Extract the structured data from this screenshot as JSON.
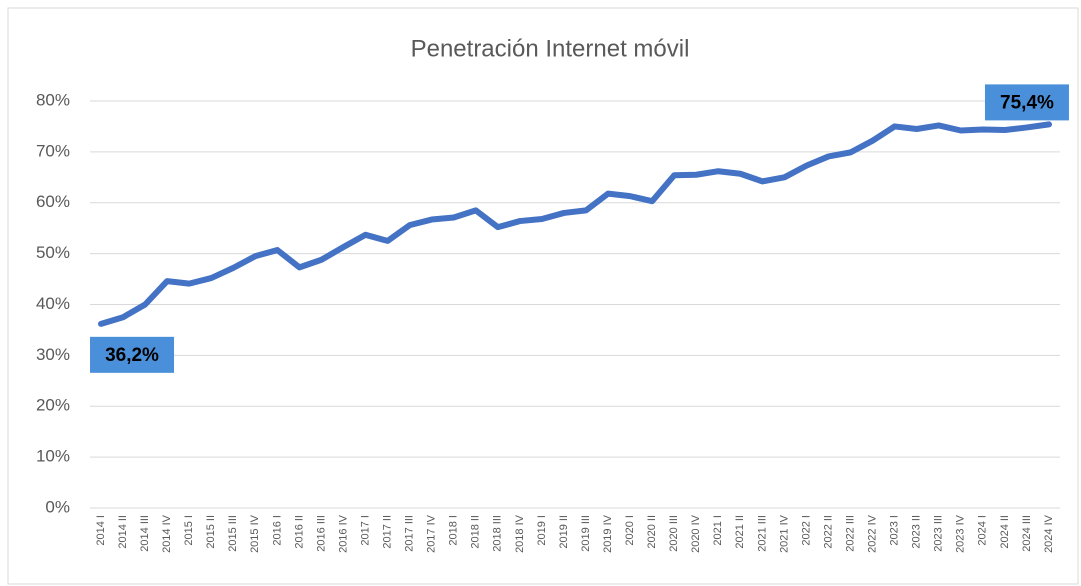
{
  "chart_data": {
    "type": "line",
    "title": "Penetración Internet móvil",
    "categories": [
      "2014 I",
      "2014 II",
      "2014 III",
      "2014 IV",
      "2015 I",
      "2015 II",
      "2015 III",
      "2015 IV",
      "2016 I",
      "2016 II",
      "2016 III",
      "2016 IV",
      "2017 I",
      "2017 II",
      "2017 III",
      "2017 IV",
      "2018 I",
      "2018 II",
      "2018 III",
      "2018 IV",
      "2019 I",
      "2019 II",
      "2019 III",
      "2019 IV",
      "2020 I",
      "2020 II",
      "2020 III",
      "2020 IV",
      "2021 I",
      "2021 II",
      "2021 III",
      "2021 IV",
      "2022 I",
      "2022 II",
      "2022 III",
      "2022 IV",
      "2023 I",
      "2023 II",
      "2023 III",
      "2023 IV",
      "2024 I",
      "2024 II",
      "2024 III",
      "2024 IV"
    ],
    "series": [
      {
        "name": "Penetración Internet móvil",
        "color": "#4472c4",
        "values": [
          36.2,
          37.5,
          40,
          44.6,
          44.1,
          45.2,
          47.2,
          49.5,
          50.7,
          47.3,
          48.8,
          51.3,
          53.7,
          52.5,
          55.6,
          56.7,
          57.1,
          58.5,
          55.2,
          56.4,
          56.8,
          58,
          58.5,
          61.8,
          61.3,
          60.3,
          65.4,
          65.5,
          66.2,
          65.7,
          64.2,
          65,
          67.3,
          69.1,
          69.9,
          72.2,
          75,
          74.5,
          75.2,
          74.2,
          74.4,
          74.3,
          74.8,
          75.4
        ],
        "value_labels": [
          "36,2%",
          null,
          null,
          null,
          null,
          null,
          null,
          null,
          null,
          null,
          null,
          null,
          null,
          null,
          null,
          null,
          null,
          null,
          null,
          null,
          null,
          null,
          null,
          null,
          null,
          null,
          null,
          null,
          null,
          null,
          null,
          null,
          null,
          null,
          null,
          null,
          null,
          null,
          null,
          null,
          null,
          null,
          null,
          "75,4%"
        ],
        "label_color": "#4a8fd9"
      }
    ],
    "ylim": [
      0,
      80
    ],
    "yticks": [
      {
        "value": 0,
        "label": "0%"
      },
      {
        "value": 10,
        "label": "10%"
      },
      {
        "value": 20,
        "label": "20%"
      },
      {
        "value": 30,
        "label": "30%"
      },
      {
        "value": 40,
        "label": "40%"
      },
      {
        "value": 50,
        "label": "50%"
      },
      {
        "value": 60,
        "label": "60%"
      },
      {
        "value": 70,
        "label": "70%"
      },
      {
        "value": 80,
        "label": "80%"
      }
    ],
    "grid": true
  }
}
